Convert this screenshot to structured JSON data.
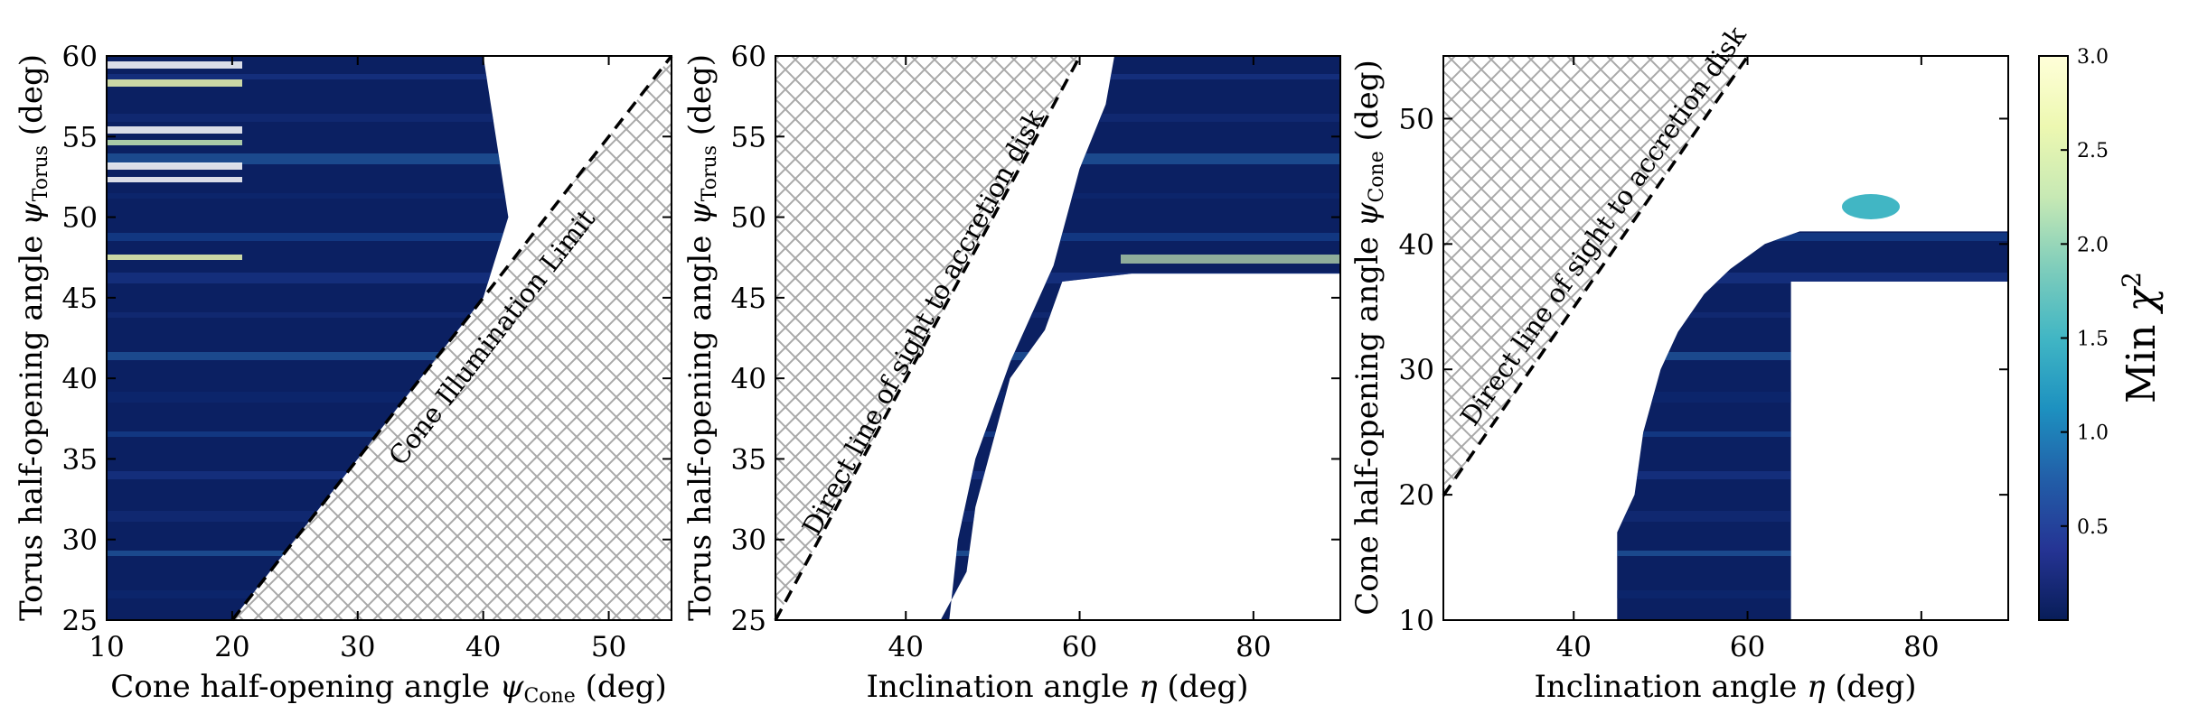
{
  "chart_data": [
    {
      "type": "heatmap",
      "xlabel": "Cone half-opening angle ψ_Cone (deg)",
      "ylabel": "Torus half-opening angle ψ_Torus (deg)",
      "xlim": [
        10,
        55
      ],
      "ylim": [
        25,
        60
      ],
      "xticks": [
        "10",
        "20",
        "30",
        "40",
        "50"
      ],
      "yticks": [
        "25",
        "30",
        "35",
        "40",
        "45",
        "50",
        "55",
        "60"
      ],
      "annotation": "Cone Illumination Limit",
      "excluded_region": {
        "description": "hatched",
        "boundary_line": [
          [
            20,
            25
          ],
          [
            55,
            60
          ]
        ]
      },
      "filled_region": [
        [
          10,
          25
        ],
        [
          20,
          25
        ],
        [
          40,
          45
        ],
        [
          42,
          50
        ],
        [
          41,
          55
        ],
        [
          40,
          60
        ],
        [
          10,
          60
        ]
      ],
      "value_range": [
        0.0,
        3.0
      ]
    },
    {
      "type": "heatmap",
      "xlabel": "Inclination angle η (deg)",
      "ylabel": "Torus half-opening angle ψ_Torus (deg)",
      "xlim": [
        25,
        90
      ],
      "ylim": [
        25,
        60
      ],
      "xticks": [
        "40",
        "60",
        "80"
      ],
      "yticks": [
        "25",
        "30",
        "35",
        "40",
        "45",
        "50",
        "55",
        "60"
      ],
      "annotation": "Direct line of sight to accretion disk",
      "excluded_region": {
        "description": "hatched",
        "boundary_line": [
          [
            25,
            25
          ],
          [
            60,
            60
          ]
        ]
      },
      "filled_region": [
        [
          44,
          25
        ],
        [
          47,
          28
        ],
        [
          48,
          32
        ],
        [
          50,
          36
        ],
        [
          52,
          40
        ],
        [
          56,
          43
        ],
        [
          58,
          46
        ],
        [
          66,
          46.5
        ],
        [
          90,
          46.5
        ],
        [
          90,
          60
        ],
        [
          64,
          60
        ],
        [
          63,
          57
        ],
        [
          60,
          53
        ],
        [
          57,
          47
        ],
        [
          52,
          41
        ],
        [
          48,
          35
        ],
        [
          46,
          30
        ],
        [
          45,
          25
        ]
      ],
      "value_range": [
        0.0,
        3.0
      ]
    },
    {
      "type": "heatmap",
      "xlabel": "Inclination angle η (deg)",
      "ylabel": "Cone half-opening angle ψ_Cone (deg)",
      "xlim": [
        25,
        90
      ],
      "ylim": [
        10,
        55
      ],
      "xticks": [
        "40",
        "60",
        "80"
      ],
      "yticks": [
        "10",
        "20",
        "30",
        "40",
        "50"
      ],
      "annotation": "Direct line of sight to accretion disk",
      "excluded_region": {
        "description": "hatched",
        "boundary_line": [
          [
            25,
            20
          ],
          [
            60,
            55
          ]
        ]
      },
      "filled_region": [
        [
          45,
          10
        ],
        [
          45,
          17
        ],
        [
          47,
          20
        ],
        [
          48,
          25
        ],
        [
          50,
          30
        ],
        [
          52,
          33
        ],
        [
          55,
          36
        ],
        [
          58,
          38
        ],
        [
          62,
          40
        ],
        [
          66,
          41
        ],
        [
          90,
          41
        ],
        [
          90,
          37
        ],
        [
          65,
          37
        ],
        [
          65,
          10
        ]
      ],
      "value_range": [
        0.0,
        3.0
      ]
    }
  ],
  "colorbar": {
    "label": "Min χ²",
    "ticks": [
      "0.5",
      "1.0",
      "1.5",
      "2.0",
      "2.5",
      "3.0"
    ],
    "range": [
      0.0,
      3.0
    ],
    "colors": [
      "#081d58",
      "#253494",
      "#225ea8",
      "#1d91c0",
      "#41b6c4",
      "#7fcdbb",
      "#c7e9b4",
      "#edf8b1",
      "#ffffd9"
    ]
  },
  "labels": {
    "p1_xlabel": "Cone half-opening angle",
    "p1_ylabel": "Torus half-opening angle",
    "p1_xsym": "Cone",
    "p1_ysym": "Torus",
    "p2_xlabel": "Inclination angle",
    "p2_ylabel": "Torus half-opening angle",
    "p2_ysym": "Torus",
    "p3_xlabel": "Inclination angle",
    "p3_ylabel": "Cone half-opening angle",
    "p3_ysym": "Cone",
    "deg": "(deg)",
    "eta": "η",
    "psi": "ψ",
    "chi": "χ",
    "min": "Min",
    "two": "2"
  }
}
